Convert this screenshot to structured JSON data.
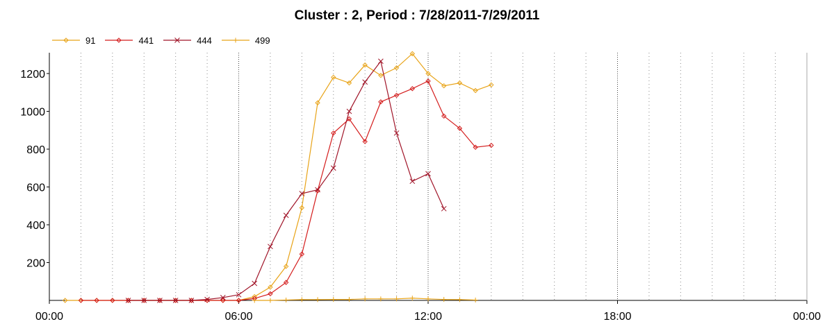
{
  "chart_data": {
    "type": "line",
    "title": "Cluster : 2, Period : 7/28/2011-7/29/2011",
    "xlabel": "",
    "ylabel": "",
    "x_tick_labels": [
      "00:00",
      "06:00",
      "12:00",
      "18:00",
      "00:00"
    ],
    "x_range_hours": [
      0,
      24
    ],
    "y_ticks": [
      200,
      400,
      600,
      800,
      1000,
      1200
    ],
    "ylim": [
      0,
      1310
    ],
    "grid": "vertical dotted lines every hour",
    "legend_position": "top-left",
    "series": [
      {
        "name": "91",
        "color": "#e8a317",
        "marker": "diamond",
        "x": [
          0.5,
          1,
          1.5,
          2,
          2.5,
          3,
          3.5,
          4,
          4.5,
          5,
          5.5,
          6,
          6.5,
          7,
          7.5,
          8,
          8.5,
          9,
          9.5,
          10,
          10.5,
          11,
          11.5,
          12,
          12.5,
          13,
          13.5,
          14
        ],
        "values": [
          0,
          0,
          0,
          0,
          0,
          0,
          0,
          0,
          0,
          0,
          0,
          0,
          20,
          70,
          180,
          490,
          1045,
          1180,
          1150,
          1245,
          1190,
          1230,
          1305,
          1200,
          1135,
          1150,
          1110,
          1140
        ]
      },
      {
        "name": "441",
        "color": "#d41c1c",
        "marker": "diamond",
        "x": [
          1,
          1.5,
          2,
          2.5,
          3,
          3.5,
          4,
          4.5,
          5,
          5.5,
          6,
          6.5,
          7,
          7.5,
          8,
          8.5,
          9,
          9.5,
          10,
          10.5,
          11,
          11.5,
          12,
          12.5,
          13,
          13.5,
          14
        ],
        "values": [
          0,
          0,
          0,
          0,
          0,
          0,
          0,
          0,
          0,
          0,
          0,
          10,
          35,
          95,
          245,
          580,
          885,
          960,
          840,
          1050,
          1085,
          1120,
          1160,
          975,
          910,
          810,
          820
        ]
      },
      {
        "name": "444",
        "color": "#a01428",
        "marker": "x",
        "x": [
          2.5,
          3,
          3.5,
          4,
          4.5,
          5,
          5.5,
          6,
          6.5,
          7,
          7.5,
          8,
          8.5,
          9,
          9.5,
          10,
          10.5,
          11,
          11.5,
          12,
          12.5
        ],
        "values": [
          0,
          0,
          0,
          0,
          0,
          5,
          15,
          30,
          90,
          285,
          450,
          565,
          585,
          700,
          1000,
          1155,
          1265,
          885,
          630,
          670,
          485
        ]
      },
      {
        "name": "499",
        "color": "#e8a317",
        "marker": "plus",
        "x": [
          6.5,
          7,
          7.5,
          8,
          8.5,
          9,
          9.5,
          10,
          10.5,
          11,
          11.5,
          12,
          12.5,
          13,
          13.5
        ],
        "values": [
          0,
          0,
          2,
          4,
          4,
          5,
          5,
          8,
          8,
          8,
          12,
          8,
          5,
          4,
          2
        ]
      }
    ]
  }
}
